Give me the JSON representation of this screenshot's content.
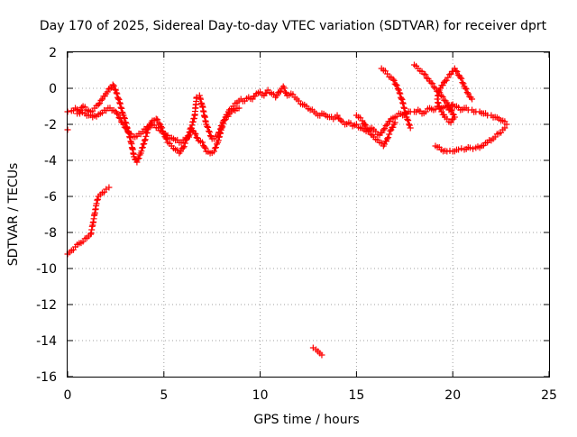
{
  "chart_data": {
    "type": "scatter",
    "title": "Day 170 of 2025, Sidereal Day-to-day VTEC variation (SDTVAR) for receiver dprt",
    "xlabel": "GPS time / hours",
    "ylabel": "SDTVAR / TECUs",
    "xlim": [
      0,
      25
    ],
    "ylim": [
      -16,
      2
    ],
    "xticks": [
      "0",
      "5",
      "10",
      "15",
      "20",
      "25"
    ],
    "yticks": [
      "-16",
      "-14",
      "-12",
      "-10",
      "-8",
      "-6",
      "-4",
      "-2",
      "0",
      "2"
    ],
    "grid": true,
    "marker": "+",
    "color": "#ff0000",
    "series": [
      {
        "name": "main-trace",
        "points": [
          [
            0.0,
            -1.3
          ],
          [
            0.2,
            -1.25
          ],
          [
            0.4,
            -1.1
          ],
          [
            0.6,
            -1.3
          ],
          [
            0.8,
            -1.0
          ],
          [
            1.0,
            -1.2
          ],
          [
            1.2,
            -1.3
          ],
          [
            1.4,
            -1.1
          ],
          [
            1.6,
            -0.9
          ],
          [
            1.8,
            -0.6
          ],
          [
            2.0,
            -0.3
          ],
          [
            2.2,
            0.0
          ],
          [
            2.35,
            0.2
          ],
          [
            2.5,
            -0.1
          ],
          [
            2.7,
            -0.8
          ],
          [
            2.9,
            -1.5
          ],
          [
            3.1,
            -2.2
          ],
          [
            3.3,
            -3.0
          ],
          [
            3.45,
            -3.8
          ],
          [
            3.6,
            -4.1
          ],
          [
            3.8,
            -3.6
          ],
          [
            4.0,
            -2.9
          ],
          [
            4.2,
            -2.2
          ],
          [
            4.4,
            -1.8
          ],
          [
            4.6,
            -1.7
          ],
          [
            4.8,
            -2.0
          ],
          [
            5.0,
            -2.5
          ],
          [
            5.2,
            -3.0
          ],
          [
            5.4,
            -3.2
          ],
          [
            5.6,
            -3.4
          ],
          [
            5.8,
            -3.6
          ],
          [
            6.0,
            -3.3
          ],
          [
            6.2,
            -2.8
          ],
          [
            6.4,
            -2.2
          ],
          [
            6.6,
            -2.5
          ],
          [
            6.8,
            -2.9
          ],
          [
            7.0,
            -3.0
          ],
          [
            7.2,
            -3.5
          ],
          [
            7.4,
            -3.6
          ],
          [
            7.6,
            -3.5
          ],
          [
            7.8,
            -3.0
          ],
          [
            8.0,
            -2.2
          ],
          [
            8.2,
            -1.6
          ],
          [
            8.4,
            -1.2
          ],
          [
            8.6,
            -1.0
          ],
          [
            8.8,
            -0.8
          ],
          [
            9.0,
            -0.6
          ],
          [
            9.2,
            -0.7
          ],
          [
            9.4,
            -0.5
          ],
          [
            9.6,
            -0.6
          ],
          [
            9.8,
            -0.3
          ],
          [
            10.0,
            -0.2
          ],
          [
            10.2,
            -0.4
          ],
          [
            10.4,
            -0.1
          ],
          [
            10.6,
            -0.3
          ],
          [
            10.8,
            -0.5
          ],
          [
            11.0,
            -0.2
          ],
          [
            11.2,
            0.1
          ],
          [
            11.4,
            -0.4
          ],
          [
            11.6,
            -0.3
          ],
          [
            11.8,
            -0.5
          ],
          [
            12.0,
            -0.7
          ],
          [
            12.2,
            -0.9
          ],
          [
            12.4,
            -1.0
          ],
          [
            12.6,
            -1.2
          ],
          [
            12.8,
            -1.3
          ],
          [
            13.0,
            -1.5
          ],
          [
            13.2,
            -1.4
          ],
          [
            13.4,
            -1.5
          ],
          [
            13.6,
            -1.6
          ],
          [
            13.8,
            -1.7
          ],
          [
            14.0,
            -1.5
          ],
          [
            14.2,
            -1.8
          ],
          [
            14.4,
            -2.0
          ],
          [
            14.6,
            -1.9
          ],
          [
            14.8,
            -2.1
          ],
          [
            15.0,
            -2.0
          ],
          [
            15.2,
            -2.2
          ],
          [
            15.4,
            -2.3
          ],
          [
            15.6,
            -2.4
          ],
          [
            15.8,
            -2.2
          ],
          [
            16.0,
            -2.4
          ],
          [
            16.2,
            -2.6
          ],
          [
            16.4,
            -2.3
          ],
          [
            16.6,
            -2.0
          ],
          [
            16.8,
            -1.7
          ],
          [
            17.0,
            -1.6
          ],
          [
            17.2,
            -1.4
          ],
          [
            17.4,
            -1.5
          ],
          [
            17.6,
            -1.4
          ],
          [
            17.8,
            -1.3
          ],
          [
            18.0,
            -1.3
          ],
          [
            18.2,
            -1.2
          ],
          [
            18.4,
            -1.4
          ],
          [
            18.6,
            -1.3
          ],
          [
            18.8,
            -1.1
          ],
          [
            19.0,
            -1.2
          ],
          [
            19.2,
            -1.0
          ],
          [
            19.4,
            -1.1
          ],
          [
            19.6,
            -1.0
          ],
          [
            19.8,
            -1.2
          ],
          [
            20.0,
            -0.9
          ],
          [
            20.2,
            -1.0
          ],
          [
            20.4,
            -1.2
          ],
          [
            20.6,
            -1.1
          ],
          [
            20.8,
            -1.2
          ],
          [
            21.0,
            -1.2
          ],
          [
            21.2,
            -1.3
          ],
          [
            21.4,
            -1.3
          ],
          [
            21.6,
            -1.4
          ],
          [
            21.8,
            -1.5
          ],
          [
            22.0,
            -1.5
          ],
          [
            22.2,
            -1.6
          ],
          [
            22.4,
            -1.7
          ],
          [
            22.6,
            -1.8
          ],
          [
            22.8,
            -2.0
          ]
        ]
      },
      {
        "name": "secondary-trace",
        "points": [
          [
            0.5,
            -1.4
          ],
          [
            0.9,
            -1.4
          ],
          [
            1.3,
            -1.6
          ],
          [
            1.7,
            -1.4
          ],
          [
            2.1,
            -1.1
          ],
          [
            2.5,
            -1.3
          ],
          [
            2.9,
            -2.0
          ],
          [
            3.2,
            -2.5
          ],
          [
            3.5,
            -2.7
          ],
          [
            3.9,
            -2.4
          ],
          [
            4.3,
            -2.0
          ],
          [
            4.7,
            -2.2
          ],
          [
            5.1,
            -2.6
          ],
          [
            5.5,
            -2.8
          ],
          [
            5.9,
            -3.0
          ],
          [
            6.3,
            -2.7
          ],
          [
            6.6,
            -1.5
          ],
          [
            6.7,
            -0.5
          ],
          [
            6.85,
            -0.4
          ],
          [
            7.0,
            -1.0
          ],
          [
            7.2,
            -2.0
          ],
          [
            7.5,
            -2.8
          ],
          [
            7.8,
            -2.6
          ],
          [
            8.1,
            -1.8
          ],
          [
            8.5,
            -1.3
          ],
          [
            8.9,
            -1.1
          ]
        ]
      },
      {
        "name": "early-branch",
        "points": [
          [
            0.0,
            -9.2
          ],
          [
            0.2,
            -9.0
          ],
          [
            0.4,
            -8.8
          ],
          [
            0.6,
            -8.6
          ],
          [
            0.8,
            -8.5
          ],
          [
            1.0,
            -8.3
          ],
          [
            1.2,
            -8.1
          ],
          [
            1.3,
            -7.6
          ],
          [
            1.4,
            -7.0
          ],
          [
            1.5,
            -6.4
          ],
          [
            1.6,
            -6.0
          ],
          [
            1.8,
            -5.8
          ],
          [
            2.0,
            -5.6
          ],
          [
            2.15,
            -5.5
          ]
        ]
      },
      {
        "name": "upper-loop",
        "points": [
          [
            16.3,
            1.1
          ],
          [
            16.6,
            0.8
          ],
          [
            16.9,
            0.5
          ],
          [
            17.2,
            -0.1
          ],
          [
            17.4,
            -0.8
          ],
          [
            17.6,
            -1.6
          ],
          [
            17.8,
            -2.2
          ],
          [
            18.0,
            1.3
          ],
          [
            18.2,
            1.1
          ],
          [
            18.5,
            0.8
          ],
          [
            18.8,
            0.4
          ],
          [
            19.1,
            0.0
          ],
          [
            19.4,
            -0.4
          ],
          [
            19.7,
            -0.8
          ],
          [
            19.9,
            -1.2
          ],
          [
            20.1,
            -1.6
          ],
          [
            19.9,
            -1.9
          ],
          [
            19.6,
            -1.6
          ],
          [
            19.3,
            -1.1
          ],
          [
            19.2,
            -0.6
          ],
          [
            19.3,
            -0.1
          ],
          [
            19.6,
            0.4
          ],
          [
            19.9,
            0.8
          ],
          [
            20.1,
            1.1
          ],
          [
            20.4,
            0.6
          ],
          [
            20.6,
            0.1
          ],
          [
            20.8,
            -0.3
          ],
          [
            21.0,
            -0.6
          ]
        ]
      },
      {
        "name": "lower-branch",
        "points": [
          [
            19.1,
            -3.2
          ],
          [
            19.4,
            -3.4
          ],
          [
            19.7,
            -3.5
          ],
          [
            20.0,
            -3.5
          ],
          [
            20.3,
            -3.4
          ],
          [
            20.6,
            -3.4
          ],
          [
            20.9,
            -3.3
          ],
          [
            21.2,
            -3.3
          ],
          [
            21.5,
            -3.2
          ],
          [
            21.8,
            -3.0
          ],
          [
            22.1,
            -2.8
          ],
          [
            22.4,
            -2.5
          ],
          [
            22.7,
            -2.2
          ]
        ]
      },
      {
        "name": "mid-loop",
        "points": [
          [
            15.0,
            -1.5
          ],
          [
            15.3,
            -1.8
          ],
          [
            15.6,
            -2.3
          ],
          [
            15.9,
            -2.7
          ],
          [
            16.2,
            -3.0
          ],
          [
            16.4,
            -3.2
          ],
          [
            16.6,
            -2.8
          ],
          [
            16.8,
            -2.3
          ],
          [
            17.0,
            -1.9
          ]
        ]
      },
      {
        "name": "outliers-low",
        "points": [
          [
            12.75,
            -14.4
          ],
          [
            12.9,
            -14.5
          ],
          [
            13.0,
            -14.6
          ],
          [
            13.1,
            -14.7
          ],
          [
            13.2,
            -14.8
          ]
        ]
      },
      {
        "name": "outliers-start",
        "points": [
          [
            0.0,
            -2.3
          ]
        ]
      }
    ]
  }
}
